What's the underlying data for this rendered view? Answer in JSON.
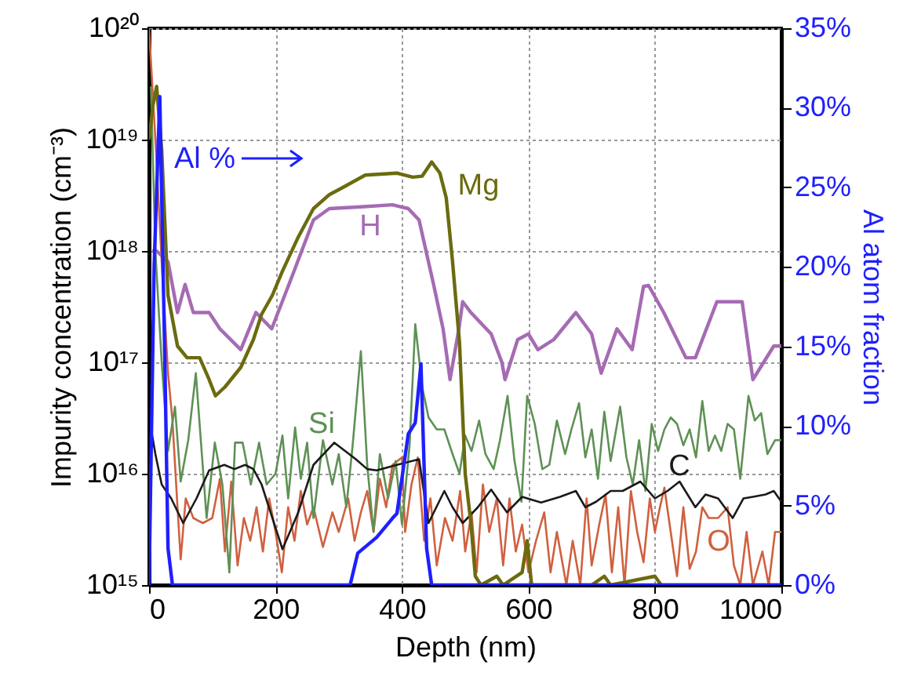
{
  "chart_data": {
    "type": "line",
    "xlabel": "Depth (nm)",
    "ylabel": "Impurity concentration (cm⁻³)",
    "y2label": "Al atom fraction",
    "xlim": [
      0,
      1000
    ],
    "xticks": [
      0,
      200,
      400,
      600,
      800,
      1000
    ],
    "ylim": [
      1000000000000000.0,
      1e+20
    ],
    "yticks": [
      {
        "value": 1000000000000000.0,
        "label": "10¹⁵"
      },
      {
        "value": 1e+16,
        "label": "10¹⁶"
      },
      {
        "value": 1e+17,
        "label": "10¹⁷"
      },
      {
        "value": 1e+18,
        "label": "10¹⁸"
      },
      {
        "value": 1e+19,
        "label": "10¹⁹"
      },
      {
        "value": 1e+20,
        "label": "10²⁰"
      }
    ],
    "y2lim": [
      0,
      35
    ],
    "y2ticks": [
      {
        "value": 0,
        "label": "0%"
      },
      {
        "value": 5,
        "label": "5%"
      },
      {
        "value": 10,
        "label": "10%"
      },
      {
        "value": 15,
        "label": "15%"
      },
      {
        "value": 20,
        "label": "20%"
      },
      {
        "value": 25,
        "label": "25%"
      },
      {
        "value": 30,
        "label": "30%"
      },
      {
        "value": 35,
        "label": "35%"
      }
    ],
    "log": "y",
    "grid": true,
    "series": [
      {
        "name": "O",
        "color": "#d0603f",
        "x": [
          0,
          10,
          20,
          30,
          37,
          45,
          50,
          58,
          70,
          85,
          100,
          112,
          120,
          130,
          140,
          150,
          160,
          170,
          180,
          190,
          200,
          210,
          220,
          230,
          240,
          250,
          260,
          275,
          290,
          300,
          315,
          325,
          335,
          345,
          355,
          365,
          375,
          385,
          400,
          405,
          415,
          425,
          435,
          445,
          455,
          468,
          480,
          492,
          500,
          510,
          518,
          528,
          538,
          550,
          560,
          570,
          580,
          590,
          600,
          612,
          625,
          635,
          645,
          660,
          670,
          682,
          692,
          700,
          712,
          722,
          732,
          742,
          752,
          762,
          772,
          782,
          792,
          800,
          808,
          815,
          825,
          835,
          845,
          855,
          865,
          875,
          885,
          900,
          915,
          925,
          935,
          945,
          955,
          970,
          980,
          990,
          1000
        ],
        "values": [
          1e+20,
          1e+19,
          8e+17,
          8e+16,
          3e+16,
          5000000000000000.0,
          1700000000000000.0,
          6000000000000000.0,
          4000000000000000.0,
          3600000000000000.0,
          4000000000000000.0,
          9000000000000000.0,
          2000000000000000.0,
          8500000000000000.0,
          1500000000000000.0,
          4000000000000000.0,
          2500000000000000.0,
          5000000000000000.0,
          2000000000000000.0,
          6000000000000000.0,
          3000000000000000.0,
          1300000000000000.0,
          5000000000000000.0,
          2500000000000000.0,
          7000000000000000.0,
          3500000000000000.0,
          5000000000000000.0,
          2200000000000000.0,
          4500000000000000.0,
          3000000000000000.0,
          6000000000000000.0,
          2500000000000000.0,
          4500000000000000.0,
          7000000000000000.0,
          3000000000000000.0,
          9000000000000000.0,
          5000000000000000.0,
          1.2e+16,
          1.4e+16,
          3000000000000000.0,
          8000000000000000.0,
          1.4e+16,
          2500000000000000.0,
          6000000000000000.0,
          1500000000000000.0,
          4000000000000000.0,
          2500000000000000.0,
          7000000000000000.0,
          2000000000000000.0,
          4500000000000000.0,
          1300000000000000.0,
          8000000000000000.0,
          3000000000000000.0,
          6000000000000000.0,
          1500000000000000.0,
          6000000000000000.0,
          2000000000000000.0,
          3500000000000000.0,
          1300000000000000.0,
          2500000000000000.0,
          4500000000000000.0,
          1300000000000000.0,
          3000000000000000.0,
          1000000000000000.0,
          2500000000000000.0,
          1000000000000000.0,
          6000000000000000.0,
          1500000000000000.0,
          3500000000000000.0,
          6500000000000000.0,
          1300000000000000.0,
          5000000000000000.0,
          1000000000000000.0,
          7000000000000000.0,
          3000000000000000.0,
          1600000000000000.0,
          6000000000000000.0,
          3000000000000000.0,
          5000000000000000.0,
          7500000000000000.0,
          3000000000000000.0,
          1200000000000000.0,
          5000000000000000.0,
          1400000000000000.0,
          2000000000000000.0,
          5000000000000000.0,
          4000000000000000.0,
          4000000000000000.0,
          5000000000000000.0,
          1500000000000000.0,
          1000000000000000.0,
          3000000000000000.0,
          1000000000000000.0,
          2000000000000000.0,
          1000000000000000.0,
          3000000000000000.0,
          3000000000000000.0
        ]
      },
      {
        "name": "Si",
        "color": "#5e9155",
        "x": [
          3,
          10,
          20,
          30,
          41,
          50,
          62,
          74,
          91,
          104,
          116,
          127,
          136,
          148,
          161,
          174,
          186,
          200,
          211,
          220,
          231,
          240,
          250,
          260,
          275,
          290,
          300,
          312,
          322,
          335,
          345,
          355,
          365,
          378,
          390,
          400,
          412,
          421,
          432,
          442,
          455,
          467,
          480,
          491,
          500,
          510,
          522,
          532,
          545,
          555,
          567,
          578,
          589,
          598,
          610,
          622,
          633,
          645,
          658,
          668,
          680,
          690,
          700,
          710,
          720,
          730,
          745,
          755,
          765,
          775,
          785,
          795,
          805,
          815,
          825,
          835,
          845,
          855,
          865,
          875,
          885,
          895,
          905,
          915,
          925,
          935,
          948,
          958,
          968,
          978,
          990,
          1000
        ],
        "values": [
          3e+19,
          1e+18,
          1e+17,
          1.6e+16,
          4e+16,
          8500000000000000.0,
          2e+16,
          8e+16,
          4000000000000000.0,
          1.9e+16,
          8000000000000000.0,
          1300000000000000.0,
          1.9e+16,
          1.9e+16,
          8000000000000000.0,
          1.9e+16,
          8000000000000000.0,
          1e+16,
          2.2e+16,
          6000000000000000.0,
          2.6e+16,
          9000000000000000.0,
          1.9e+16,
          4000000000000000.0,
          2e+16,
          8000000000000000.0,
          1.5e+16,
          5000000000000000.0,
          1.8e+16,
          1.26e+17,
          1.2e+16,
          3000000000000000.0,
          1.5e+16,
          6000000000000000.0,
          1.3e+16,
          3500000000000000.0,
          1.8e+16,
          2.2e+17,
          6e+16,
          3.2e+16,
          2.5e+16,
          2.5e+16,
          1.5e+16,
          1e+16,
          2.2e+16,
          1.6e+16,
          3e+16,
          1.5e+16,
          1.1e+16,
          2e+16,
          5e+16,
          1.3e+16,
          5600000000000000.0,
          5e+16,
          2.8e+16,
          1.1e+16,
          1.2e+16,
          3e+16,
          1.5e+16,
          2.5e+16,
          4.3e+16,
          1.4e+16,
          2.5e+16,
          9000000000000000.0,
          3.6e+16,
          1.3e+16,
          4e+16,
          1.4e+16,
          8000000000000000.0,
          2e+16,
          7000000000000000.0,
          2.8e+16,
          1.6e+16,
          2.5e+16,
          3.2e+16,
          2.8e+16,
          1.8e+16,
          2.5e+16,
          1.4e+16,
          4.5e+16,
          1.6e+16,
          2.2e+16,
          1.6e+16,
          2.8e+16,
          2.5e+16,
          9000000000000000.0,
          5e+16,
          3e+16,
          3.5e+16,
          1.5e+16,
          2e+16,
          2e+16
        ]
      },
      {
        "name": "C",
        "color": "#1a1a1a",
        "x": [
          0,
          5,
          10,
          20,
          35,
          54,
          75,
          95,
          119,
          135,
          152,
          165,
          178,
          195,
          211,
          236,
          260,
          293,
          327,
          345,
          360,
          392,
          427,
          442,
          467,
          480,
          496,
          520,
          541,
          566,
          590,
          620,
          650,
          675,
          690,
          707,
          730,
          749,
          777,
          800,
          820,
          839,
          864,
          880,
          900,
          923,
          940,
          955,
          975,
          988,
          1000
        ],
        "values": [
          2e+16,
          2.2e+16,
          1.5e+16,
          8000000000000000.0,
          6000000000000000.0,
          3600000000000000.0,
          6000000000000000.0,
          1.07e+16,
          1.2e+16,
          1.1e+16,
          1.2e+16,
          1.1e+16,
          8000000000000000.0,
          4000000000000000.0,
          2100000000000000.0,
          4500000000000000.0,
          1.2e+16,
          1.9e+16,
          1.35e+16,
          1.1e+16,
          1.07e+16,
          1.2e+16,
          1.35e+16,
          3600000000000000.0,
          7000000000000000.0,
          5000000000000000.0,
          3600000000000000.0,
          5000000000000000.0,
          7200000000000000.0,
          4500000000000000.0,
          6200000000000000.0,
          5500000000000000.0,
          6200000000000000.0,
          7000000000000000.0,
          5000000000000000.0,
          5600000000000000.0,
          7000000000000000.0,
          7000000000000000.0,
          8500000000000000.0,
          6000000000000000.0,
          7000000000000000.0,
          8500000000000000.0,
          5000000000000000.0,
          6500000000000000.0,
          6000000000000000.0,
          4000000000000000.0,
          6000000000000000.0,
          6200000000000000.0,
          6500000000000000.0,
          7000000000000000.0,
          5600000000000000.0
        ]
      },
      {
        "name": "H",
        "color": "#a56bb3",
        "x": [
          5,
          12,
          30,
          45,
          57,
          70,
          95,
          112,
          145,
          169,
          194,
          228,
          260,
          285,
          340,
          385,
          410,
          427,
          450,
          465,
          476,
          490,
          496,
          509,
          541,
          558,
          563,
          583,
          600,
          615,
          640,
          675,
          700,
          715,
          740,
          764,
          782,
          790,
          814,
          849,
          864,
          898,
          923,
          938,
          955,
          988,
          1000
        ],
        "values": [
          1e+18,
          1e+18,
          8e+17,
          2.8e+17,
          5e+17,
          2.8e+17,
          2.8e+17,
          2e+17,
          1.3e+17,
          2.8e+17,
          2e+17,
          6.3e+17,
          1.9e+18,
          2.4e+18,
          2.5e+18,
          2.6e+18,
          2.4e+18,
          1.9e+18,
          5e+17,
          2e+17,
          7e+16,
          2e+17,
          3.5e+17,
          2.8e+17,
          1.8e+17,
          1e+17,
          7e+16,
          1.6e+17,
          1.8e+17,
          1.3e+17,
          1.6e+17,
          2.8e+17,
          1.8e+17,
          8e+16,
          2e+17,
          1.3e+17,
          4.8e+17,
          4.9e+17,
          2.8e+17,
          1.1e+17,
          1.1e+17,
          3.5e+17,
          3.5e+17,
          3.5e+17,
          7e+16,
          1.4e+17,
          1.4e+17
        ]
      },
      {
        "name": "Mg",
        "color": "#6b6b0f",
        "x": [
          0,
          6,
          12,
          20,
          30,
          45,
          60,
          80,
          95,
          105,
          120,
          145,
          165,
          178,
          195,
          211,
          235,
          260,
          285,
          302,
          342,
          392,
          417,
          432,
          447,
          460,
          470,
          480,
          491,
          500,
          509,
          516,
          525,
          550,
          560,
          590,
          598,
          605,
          700,
          720,
          730,
          800,
          810,
          1000
        ],
        "values": [
          1e+19,
          2e+19,
          3e+19,
          8e+18,
          4e+17,
          1.4e+17,
          1.1e+17,
          1.1e+17,
          7e+16,
          5e+16,
          6e+16,
          9e+16,
          1.6e+17,
          2.7e+17,
          4e+17,
          6.6e+17,
          1.3e+18,
          2.4e+18,
          3.2e+18,
          3.6e+18,
          4.8e+18,
          5e+18,
          4.6e+18,
          4.7e+18,
          6.3e+18,
          5e+18,
          3e+18,
          8e+17,
          1.5e+17,
          1e+16,
          3600000000000000.0,
          1200000000000000.0,
          1000000000000000.0,
          1200000000000000.0,
          1000000000000000.0,
          1300000000000000.0,
          2500000000000000.0,
          1000000000000000.0,
          1000000000000000.0,
          1200000000000000.0,
          1000000000000000.0,
          1200000000000000.0,
          1000000000000000.0,
          1000000000000000.0
        ]
      },
      {
        "name": "Al %",
        "color": "#1f1fff",
        "axis": "y2",
        "x": [
          0,
          8,
          17,
          25,
          30,
          37,
          318,
          330,
          360,
          385,
          392,
          410,
          421,
          430,
          439,
          447,
          1000
        ],
        "values": [
          0,
          20,
          30.7,
          14,
          2.3,
          0,
          0,
          2,
          3,
          4.2,
          4.5,
          9.5,
          10.2,
          13.9,
          2.3,
          0,
          0
        ]
      }
    ]
  }
}
